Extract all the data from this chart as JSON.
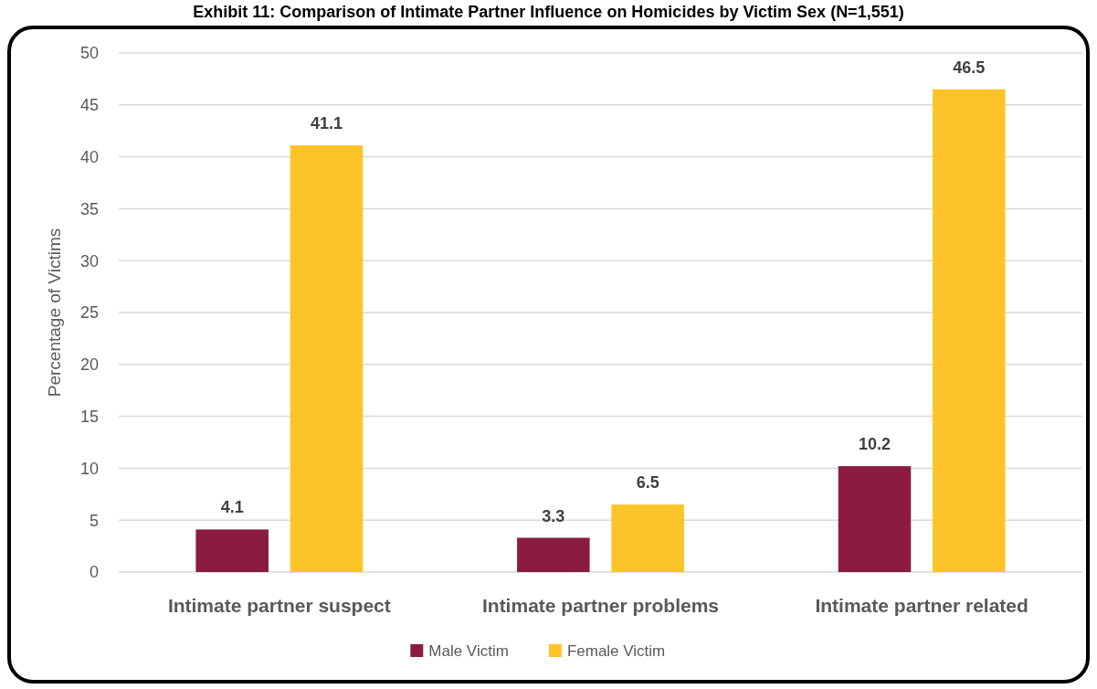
{
  "chart_data": {
    "type": "bar",
    "title": "Exhibit 11: Comparison of Intimate Partner Influence on Homicides by Victim Sex (N=1,551)",
    "ylabel": "Percentage of Victims",
    "categories": [
      "Intimate partner suspect",
      "Intimate partner problems",
      "Intimate partner related"
    ],
    "series": [
      {
        "name": "Male Victim",
        "color": "#8b1c40",
        "values": [
          4.1,
          3.3,
          10.2
        ]
      },
      {
        "name": "Female Victim",
        "color": "#fcc429",
        "values": [
          41.1,
          6.5,
          46.5
        ]
      }
    ],
    "ylim": [
      0,
      50
    ],
    "yticks": [
      0,
      5,
      10,
      15,
      20,
      25,
      30,
      35,
      40,
      45,
      50
    ],
    "grid": "y",
    "legend": "bottom",
    "data_labels": true
  }
}
